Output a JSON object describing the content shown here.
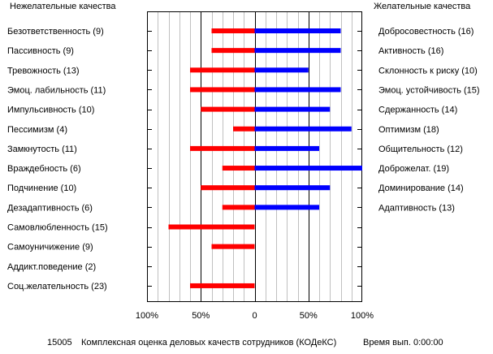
{
  "window": {
    "left_header": "Нежелательные качества",
    "right_header": "Желательные качества"
  },
  "footer": {
    "code": "15005",
    "title": "Комплексная оценка деловых качеств сотрудников (КОДеКС)",
    "time": "Время вып. 0:00:00"
  },
  "colors": {
    "negative": "#ff0000",
    "positive": "#0000ff",
    "grid": "#c0c0c0",
    "frame": "#000000"
  },
  "chart_data": {
    "type": "bar",
    "orientation": "horizontal-diverging",
    "xlim": [
      -100,
      100
    ],
    "x_ticks": [
      "100%",
      "50%",
      "0",
      "50%",
      "100%"
    ],
    "x_tick_values": [
      -100,
      -50,
      0,
      50,
      100
    ],
    "grid": true,
    "rows": [
      {
        "left_label": "Безответственность (9)",
        "left_value": 40,
        "right_label": "Добросовестность (16)",
        "right_value": 80
      },
      {
        "left_label": "Пассивность (9)",
        "left_value": 40,
        "right_label": "Активность (16)",
        "right_value": 80
      },
      {
        "left_label": "Тревожность (13)",
        "left_value": 60,
        "right_label": "Склонность к риску (10)",
        "right_value": 50
      },
      {
        "left_label": "Эмоц. лабильность (11)",
        "left_value": 60,
        "right_label": "Эмоц. устойчивость (15)",
        "right_value": 80
      },
      {
        "left_label": "Импульсивность (10)",
        "left_value": 50,
        "right_label": "Сдержанность (14)",
        "right_value": 70
      },
      {
        "left_label": "Пессимизм (4)",
        "left_value": 20,
        "right_label": "Оптимизм (18)",
        "right_value": 90
      },
      {
        "left_label": "Замкнутость (11)",
        "left_value": 60,
        "right_label": "Общительность (12)",
        "right_value": 60
      },
      {
        "left_label": "Враждебность (6)",
        "left_value": 30,
        "right_label": "Доброжелат. (19)",
        "right_value": 100
      },
      {
        "left_label": "Подчинение (10)",
        "left_value": 50,
        "right_label": "Доминирование (14)",
        "right_value": 70
      },
      {
        "left_label": "Дезадаптивность (6)",
        "left_value": 30,
        "right_label": "Адаптивность (13)",
        "right_value": 60
      },
      {
        "left_label": "Самовлюбленность (15)",
        "left_value": 80,
        "right_label": "",
        "right_value": 0
      },
      {
        "left_label": "Самоуничижение (9)",
        "left_value": 40,
        "right_label": "",
        "right_value": 0
      },
      {
        "left_label": "Аддикт.поведение (2)",
        "left_value": 0,
        "right_label": "",
        "right_value": 0
      },
      {
        "left_label": "Соц.желательность (23)",
        "left_value": 60,
        "right_label": "",
        "right_value": 0
      }
    ]
  }
}
